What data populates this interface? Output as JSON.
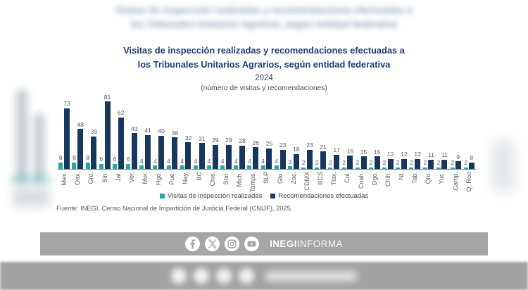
{
  "title": {
    "line1": "Visitas de inspección realizadas y recomendaciones efectuadas a",
    "line2": "los Tribunales Unitarios Agrarios, según entidad federativa",
    "year": "2024",
    "subtitle": "(número de visitas y recomendaciones)"
  },
  "chart_data": {
    "type": "bar",
    "title": "Visitas de inspección realizadas y recomendaciones efectuadas a los Tribunales Unitarios Agrarios, según entidad federativa, 2024",
    "xlabel": "",
    "ylabel": "número de visitas y recomendaciones",
    "ylim": [
      0,
      85
    ],
    "grid": false,
    "legend_position": "bottom",
    "categories": [
      "Mex.",
      "Oax.",
      "Gro.",
      "Sin.",
      "Jal.",
      "Ver.",
      "Mor.",
      "Hgo.",
      "Pue.",
      "Nay.",
      "BC",
      "Chis.",
      "Son.",
      "Mich.",
      "Tamps.",
      "SLP",
      "Gto.",
      "Zac.",
      "CDMX",
      "BCS",
      "Tlax.",
      "Col.",
      "Coah.",
      "Dgo.",
      "Chih.",
      "NL",
      "Tab.",
      "Qro.",
      "Yuc.",
      "Camp.",
      "Q. Roo"
    ],
    "series": [
      {
        "name": "Visitas de inspección realizadas",
        "color": "#2ba5a2",
        "values": [
          8,
          8,
          8,
          6,
          6,
          6,
          4,
          4,
          4,
          4,
          4,
          4,
          4,
          4,
          4,
          4,
          4,
          3,
          2,
          2,
          2,
          2,
          2,
          2,
          2,
          2,
          2,
          2,
          2,
          2,
          2
        ]
      },
      {
        "name": "Recomendaciones efectuadas",
        "color": "#17375e",
        "values": [
          73,
          48,
          39,
          81,
          62,
          43,
          41,
          40,
          38,
          32,
          31,
          29,
          29,
          28,
          26,
          25,
          23,
          18,
          23,
          21,
          17,
          16,
          15,
          15,
          12,
          12,
          12,
          11,
          11,
          9,
          8
        ]
      }
    ]
  },
  "source": "Fuente: INEGI. Censo Nacional de Impartición de Justicia Federal (CNIJF), 2025.",
  "footer": {
    "icons": [
      "facebook-icon",
      "x-icon",
      "instagram-icon",
      "youtube-icon"
    ],
    "brand_bold": "INEGI",
    "brand_regular": "INFORMA"
  },
  "colors": {
    "title": "#1a3e73",
    "visitas": "#2ba5a2",
    "recomendaciones": "#17375e",
    "footer_bar": "#a6a6a6"
  }
}
